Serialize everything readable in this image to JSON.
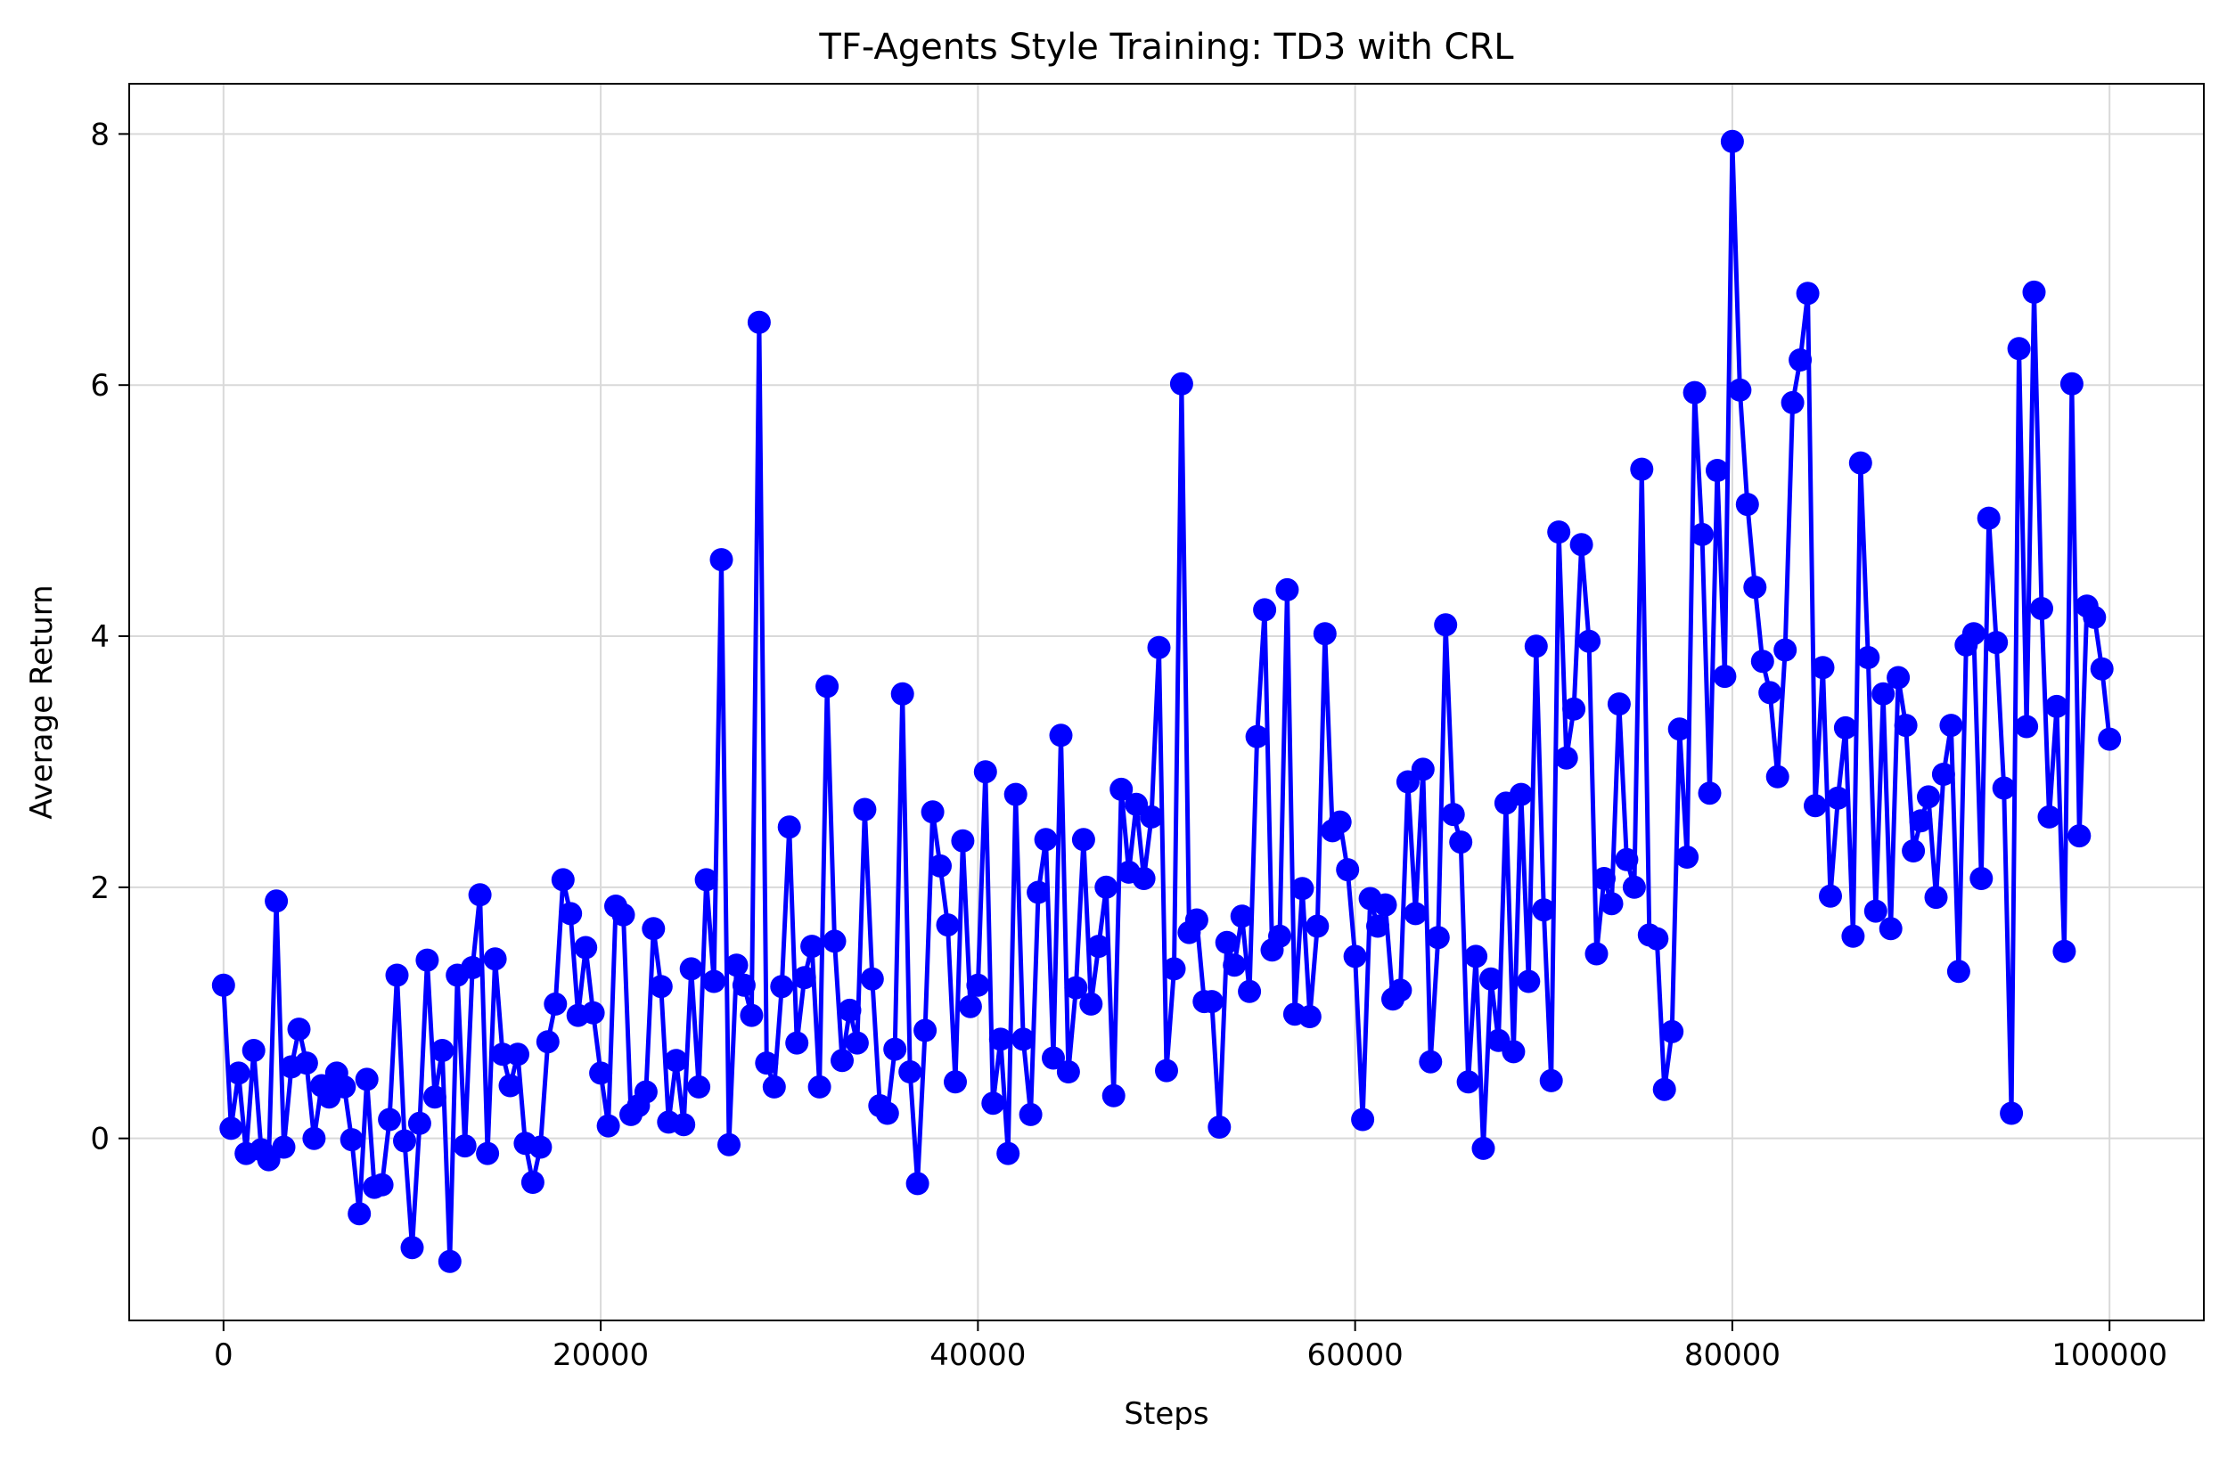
{
  "chart_data": {
    "type": "line",
    "title": "TF-Agents Style Training: TD3 with CRL",
    "xlabel": "Steps",
    "ylabel": "Average Return",
    "xlim": [
      -5000,
      105000
    ],
    "ylim": [
      -1.45,
      8.4
    ],
    "xticks": [
      0,
      20000,
      40000,
      60000,
      80000,
      100000
    ],
    "yticks": [
      0,
      2,
      4,
      6,
      8
    ],
    "grid": true,
    "line_color": "#0000ff",
    "marker": "circle",
    "series": [
      {
        "x": [
          0,
          400,
          800,
          1200,
          1600,
          2000,
          2400,
          2800,
          3200,
          3600,
          4000,
          4400,
          4800,
          5200,
          5600,
          6000,
          6400,
          6800,
          7200,
          7600,
          8000,
          8400,
          8800,
          9200,
          9600,
          10000,
          10400,
          10800,
          11200,
          11600,
          12000,
          12400,
          12800,
          13200,
          13600,
          14000,
          14400,
          14800,
          15200,
          15600,
          16000,
          16400,
          16800,
          17200,
          17600,
          18000,
          18400,
          18800,
          19200,
          19600,
          20000,
          20400,
          20800,
          21200,
          21600,
          22000,
          22400,
          22800,
          23200,
          23600,
          24000,
          24400,
          24800,
          25200,
          25600,
          26000,
          26400,
          26800,
          27200,
          27600,
          28000,
          28400,
          28800,
          29200,
          29600,
          30000,
          30400,
          30800,
          31200,
          31600,
          32000,
          32400,
          32800,
          33200,
          33600,
          34000,
          34400,
          34800,
          35200,
          35600,
          36000,
          36400,
          36800,
          37200,
          37600,
          38000,
          38400,
          38800,
          39200,
          39600,
          40000,
          40400,
          40800,
          41200,
          41600,
          42000,
          42400,
          42800,
          43200,
          43600,
          44000,
          44400,
          44800,
          45200,
          45600,
          46000,
          46400,
          46800,
          47200,
          47600,
          48000,
          48400,
          48800,
          49200,
          49600,
          50000,
          50400,
          50800,
          51200,
          51600,
          52000,
          52400,
          52800,
          53200,
          53600,
          54000,
          54400,
          54800,
          55200,
          55600,
          56000,
          56400,
          56800,
          57200,
          57600,
          58000,
          58400,
          58800,
          59200,
          59600,
          60000,
          60400,
          60800,
          61200,
          61600,
          62000,
          62400,
          62800,
          63200,
          63600,
          64000,
          64400,
          64800,
          65200,
          65600,
          66000,
          66400,
          66800,
          67200,
          67600,
          68000,
          68400,
          68800,
          69200,
          69600,
          70000,
          70400,
          70800,
          71200,
          71600,
          72000,
          72400,
          72800,
          73200,
          73600,
          74000,
          74400,
          74800,
          75200,
          75600,
          76000,
          76400,
          76800,
          77200,
          77600,
          78000,
          78400,
          78800,
          79200,
          79600,
          80000,
          80400,
          80800,
          81200,
          81600,
          82000,
          82400,
          82800,
          83200,
          83600,
          84000,
          84400,
          84800,
          85200,
          85600,
          86000,
          86400,
          86800,
          87200,
          87600,
          88000,
          88400,
          88800,
          89200,
          89600,
          90000,
          90400,
          90800,
          91200,
          91600,
          92000,
          92400,
          92800,
          93200,
          93600,
          94000,
          94400,
          94800,
          95200,
          95600,
          96000,
          96400,
          96800,
          97200,
          97600,
          98000,
          98400,
          98800,
          99200,
          99600,
          100000
        ],
        "values": [
          1.22,
          0.08,
          0.52,
          -0.12,
          0.7,
          -0.09,
          -0.17,
          1.89,
          -0.07,
          0.57,
          0.87,
          0.6,
          0.0,
          0.42,
          0.33,
          0.52,
          0.41,
          -0.01,
          -0.6,
          0.47,
          -0.39,
          -0.37,
          0.15,
          1.3,
          -0.02,
          -0.87,
          0.12,
          1.42,
          0.33,
          0.7,
          -0.98,
          1.3,
          -0.06,
          1.36,
          1.94,
          -0.12,
          1.43,
          0.67,
          0.42,
          0.67,
          -0.04,
          -0.35,
          -0.07,
          0.77,
          1.07,
          2.06,
          1.79,
          0.98,
          1.52,
          1.0,
          0.52,
          0.1,
          1.85,
          1.78,
          0.19,
          0.26,
          0.37,
          1.67,
          1.21,
          0.13,
          0.62,
          0.11,
          1.35,
          0.41,
          2.06,
          1.25,
          4.61,
          -0.05,
          1.38,
          1.22,
          0.98,
          6.5,
          0.6,
          0.41,
          1.21,
          2.48,
          0.76,
          1.28,
          1.53,
          0.41,
          3.6,
          1.57,
          0.62,
          1.02,
          0.76,
          2.62,
          1.27,
          0.26,
          0.2,
          0.71,
          3.54,
          0.53,
          -0.36,
          0.86,
          2.6,
          2.17,
          1.7,
          0.45,
          2.37,
          1.05,
          1.22,
          2.92,
          0.28,
          0.79,
          -0.12,
          2.74,
          0.79,
          0.19,
          1.96,
          2.38,
          0.64,
          3.21,
          0.53,
          1.2,
          2.38,
          1.07,
          1.53,
          2.0,
          0.34,
          2.78,
          2.12,
          2.66,
          2.07,
          2.56,
          3.91,
          0.54,
          1.35,
          6.01,
          1.64,
          1.74,
          1.09,
          1.09,
          0.09,
          1.56,
          1.38,
          1.77,
          1.17,
          3.2,
          4.21,
          1.5,
          1.61,
          4.37,
          0.99,
          1.99,
          0.97,
          1.69,
          4.02,
          2.45,
          2.52,
          2.14,
          1.45,
          0.15,
          1.91,
          1.69,
          1.86,
          1.11,
          1.18,
          2.84,
          1.79,
          2.94,
          0.61,
          1.6,
          4.09,
          2.58,
          2.36,
          0.45,
          1.45,
          -0.08,
          1.27,
          0.78,
          2.67,
          0.69,
          2.74,
          1.25,
          3.92,
          1.82,
          0.46,
          4.83,
          3.03,
          3.42,
          4.73,
          3.96,
          1.47,
          2.07,
          1.87,
          3.46,
          2.22,
          2.0,
          5.33,
          1.62,
          1.59,
          0.39,
          0.85,
          3.26,
          2.24,
          5.94,
          4.81,
          2.75,
          5.32,
          3.68,
          7.94,
          5.96,
          5.05,
          4.39,
          3.8,
          3.55,
          2.88,
          3.89,
          5.86,
          6.2,
          6.73,
          2.65,
          3.75,
          1.93,
          2.71,
          3.27,
          1.61,
          5.38,
          3.83,
          1.81,
          3.54,
          1.67,
          3.67,
          3.29,
          2.29,
          2.53,
          2.72,
          1.92,
          2.9,
          3.29,
          1.33,
          3.93,
          4.02,
          2.07,
          4.94,
          3.95,
          2.79,
          0.2,
          6.29,
          3.28,
          6.74,
          4.22,
          2.56,
          3.44,
          1.49,
          6.01,
          2.41,
          4.24,
          4.15,
          3.74,
          3.18
        ]
      }
    ]
  }
}
